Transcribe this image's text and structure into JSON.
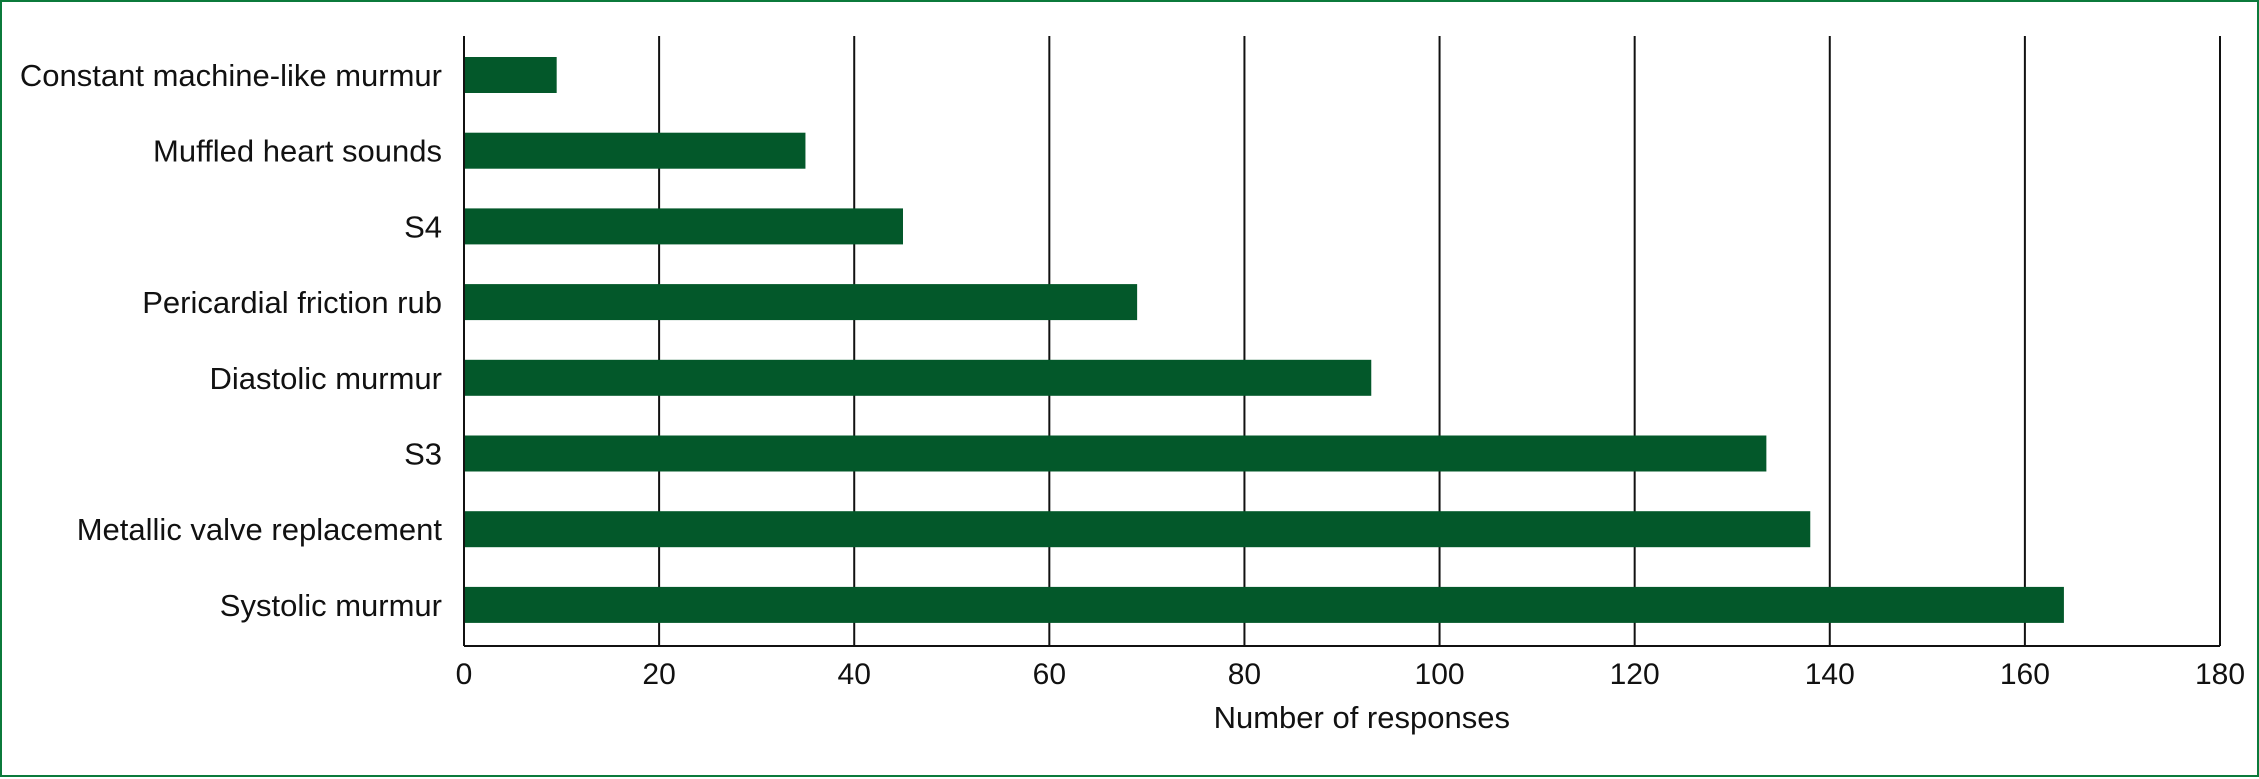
{
  "chart_data": {
    "type": "bar",
    "orientation": "horizontal",
    "categories": [
      "Constant machine-like murmur",
      "Muffled heart sounds",
      "S4",
      "Pericardial friction rub",
      "Diastolic murmur",
      "S3",
      "Metallic valve replacement",
      "Systolic murmur"
    ],
    "values": [
      9.5,
      35,
      45,
      69,
      93,
      133.5,
      138,
      164
    ],
    "title": "",
    "xlabel": "Number of responses",
    "ylabel": "",
    "xlim": [
      0,
      180
    ],
    "xticks": [
      0,
      20,
      40,
      60,
      80,
      100,
      120,
      140,
      160,
      180
    ],
    "xtick_labels": [
      "0",
      "20",
      "40",
      "60",
      "80",
      "100",
      "120",
      "140",
      "160",
      "180"
    ],
    "grid": "vertical",
    "legend": "none",
    "bar_color": "#03582a",
    "frame_color": "#0b7a3b",
    "gridline_color": "#111111"
  }
}
